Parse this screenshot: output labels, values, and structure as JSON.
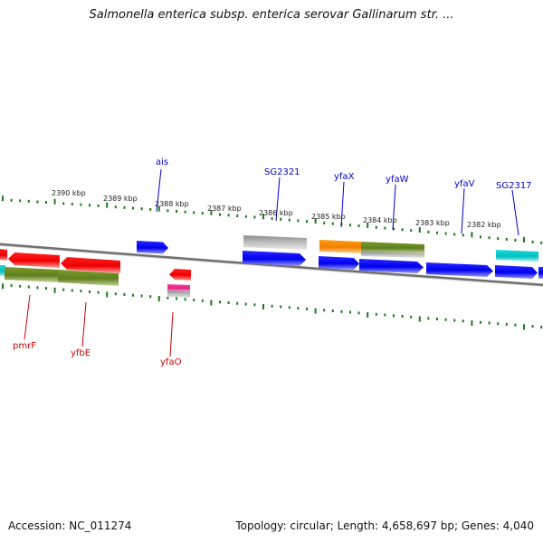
{
  "title": "Salmonella enterica subsp. enterica serovar Gallinarum str. ...",
  "footer": {
    "accession": "Accession: NC_011274",
    "stats": "Topology: circular; Length: 4,658,697 bp; Genes: 4,040"
  },
  "colors": {
    "forward_gene": "#0000ee",
    "reverse_gene": "#ee0000",
    "olive": "#6b8e23",
    "orange": "#ff8c00",
    "cyan": "#00c8c8",
    "gray": "#b0b0b0",
    "magenta": "#e0208a",
    "tick_green": "#1a7a1a",
    "backbone": "#707070"
  },
  "ticks": [
    "2390 kbp",
    "2389 kbp",
    "2388 kbp",
    "2387 kbp",
    "2386 kbp",
    "2385 kbp",
    "2384 kbp",
    "2383 kbp",
    "2382 kbp"
  ],
  "labels_top": [
    "ais",
    "SG2321",
    "yfaX",
    "yfaW",
    "yfaV",
    "SG2317"
  ],
  "labels_bottom": [
    "pmrF",
    "yfbE",
    "yfaO"
  ]
}
